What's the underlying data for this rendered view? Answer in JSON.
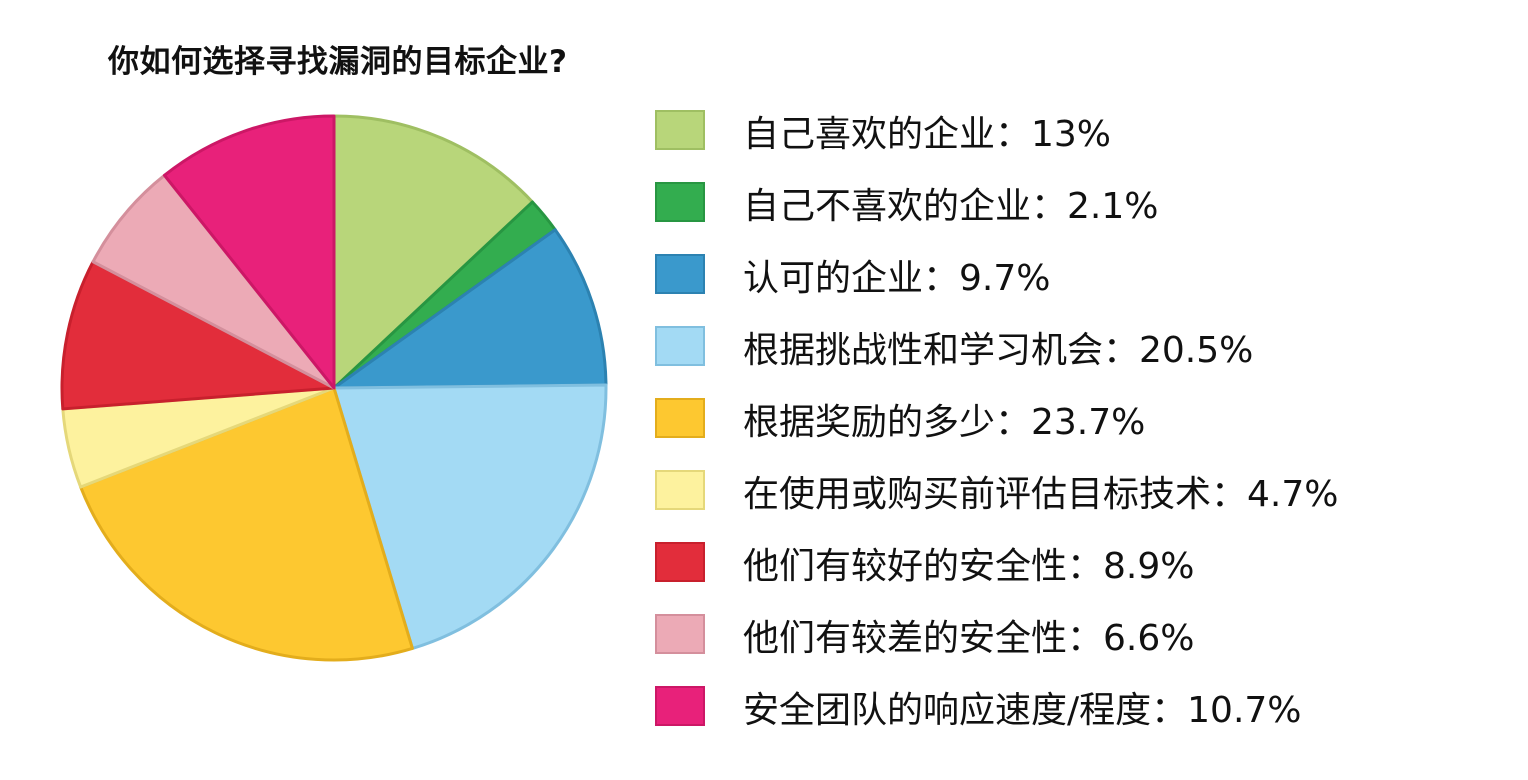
{
  "chart_data": {
    "type": "pie",
    "title": "你如何选择寻找漏洞的目标企业?",
    "unit": "%",
    "slices": [
      {
        "label": "自己喜欢的企业",
        "value": 13,
        "display": "13%",
        "color": "#b8d67a",
        "border": "#9fbf62"
      },
      {
        "label": "自己不喜欢的企业",
        "value": 2.1,
        "display": "2.1%",
        "color": "#33ad4f",
        "border": "#289642"
      },
      {
        "label": "认可的企业",
        "value": 9.7,
        "display": "9.7%",
        "color": "#3a99cc",
        "border": "#2c82b1"
      },
      {
        "label": "根据挑战性和学习机会",
        "value": 20.5,
        "display": "20.5%",
        "color": "#a3daf4",
        "border": "#80bfdf"
      },
      {
        "label": "根据奖励的多少",
        "value": 23.7,
        "display": "23.7%",
        "color": "#fdc830",
        "border": "#e3ad1c"
      },
      {
        "label": "在使用或购买前评估目标技术",
        "value": 4.7,
        "display": "4.7%",
        "color": "#fdf29e",
        "border": "#e5d87a"
      },
      {
        "label": "他们有较好的安全性",
        "value": 8.9,
        "display": "8.9%",
        "color": "#e22d3b",
        "border": "#c8202d"
      },
      {
        "label": "他们有较差的安全性",
        "value": 6.6,
        "display": "6.6%",
        "color": "#ecaab6",
        "border": "#d48f9c"
      },
      {
        "label": "安全团队的响应速度/程度",
        "value": 10.7,
        "display": "10.7%",
        "color": "#e8217a",
        "border": "#cc1766"
      }
    ],
    "legend_position": "right"
  }
}
